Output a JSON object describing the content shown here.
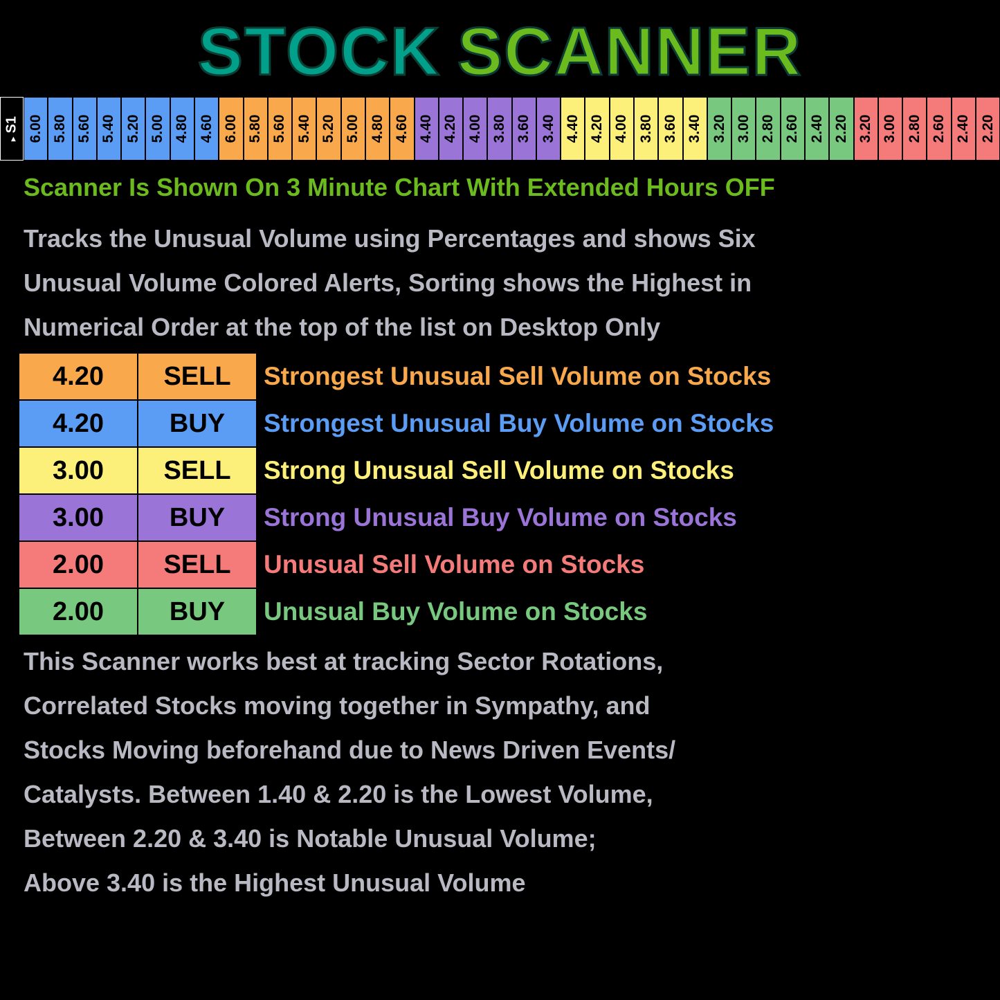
{
  "title": {
    "words": [
      {
        "text": "STOCK",
        "color": "#00a08a"
      },
      {
        "text": "SCANNER",
        "color": "#6cbb1e"
      }
    ]
  },
  "scanner": {
    "label": "S1",
    "arrow": "▸",
    "groups": [
      {
        "color": "#5b9cf4",
        "values": [
          "6.00",
          "5.80",
          "5.60",
          "5.40",
          "5.20",
          "5.00",
          "4.80",
          "4.60"
        ]
      },
      {
        "color": "#f9a94b",
        "values": [
          "6.00",
          "5.80",
          "5.60",
          "5.40",
          "5.20",
          "5.00",
          "4.80",
          "4.60"
        ]
      },
      {
        "color": "#9a74d6",
        "values": [
          "4.40",
          "4.20",
          "4.00",
          "3.80",
          "3.60",
          "3.40"
        ]
      },
      {
        "color": "#fdf07a",
        "values": [
          "4.40",
          "4.20",
          "4.00",
          "3.80",
          "3.60",
          "3.40"
        ]
      },
      {
        "color": "#78c87f",
        "values": [
          "3.20",
          "3.00",
          "2.80",
          "2.60",
          "2.40",
          "2.20"
        ]
      },
      {
        "color": "#f57b7b",
        "values": [
          "3.20",
          "3.00",
          "2.80",
          "2.60",
          "2.40",
          "2.20"
        ]
      }
    ]
  },
  "note": "Scanner Is Shown On 3 Minute Chart With Extended Hours OFF",
  "intro": [
    "Tracks the Unusual Volume using Percentages and shows Six",
    "Unusual Volume Colored Alerts, Sorting shows the Highest in",
    "Numerical Order at the top of the list on Desktop Only"
  ],
  "table": {
    "rows": [
      {
        "value": "4.20",
        "signal": "SELL",
        "description": "Strongest Unusual Sell Volume on Stocks",
        "color": "#f9a94b"
      },
      {
        "value": "4.20",
        "signal": "BUY",
        "description": "Strongest Unusual Buy Volume on Stocks",
        "color": "#5b9cf4"
      },
      {
        "value": "3.00",
        "signal": "SELL",
        "description": "Strong Unusual Sell Volume on Stocks",
        "color": "#fdf07a"
      },
      {
        "value": "3.00",
        "signal": "BUY",
        "description": "Strong Unusual Buy Volume on Stocks",
        "color": "#9a74d6"
      },
      {
        "value": "2.00",
        "signal": "SELL",
        "description": "Unusual Sell Volume on Stocks",
        "color": "#f57b7b"
      },
      {
        "value": "2.00",
        "signal": "BUY",
        "description": "Unusual Buy Volume on Stocks",
        "color": "#78c87f"
      }
    ]
  },
  "outro": [
    "This Scanner works best at tracking Sector Rotations,",
    "Correlated Stocks moving together in Sympathy, and",
    "Stocks Moving beforehand due to News Driven Events/",
    "Catalysts. Between 1.40 & 2.20 is the Lowest Volume,",
    "Between 2.20 & 3.40 is Notable Unusual Volume;",
    "Above 3.40 is the Highest Unusual Volume"
  ]
}
